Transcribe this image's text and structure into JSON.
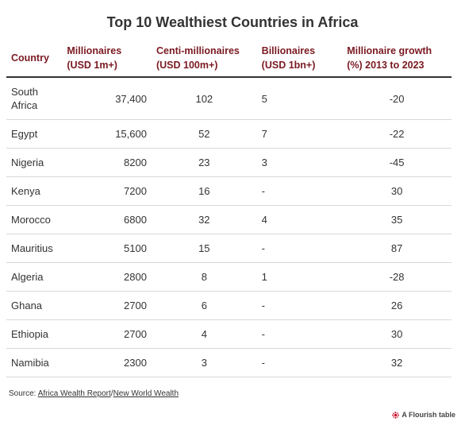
{
  "chart_data": {
    "type": "table",
    "title": "Top 10 Wealthiest Countries in Africa",
    "columns": [
      "Country",
      "Millionaires (USD 1m+)",
      "Centi-millionaires (USD 100m+)",
      "Billionaires (USD 1bn+)",
      "Millionaire growth (%) 2013 to 2023"
    ],
    "headers": {
      "country": "Country",
      "millionaires_l1": "Millionaires",
      "millionaires_l2": "(USD 1m+)",
      "centi_l1": "Centi-millionaires",
      "centi_l2": "(USD 100m+)",
      "billionaires_l1": "Billionaires",
      "billionaires_l2": "(USD 1bn+)",
      "growth_l1": "Millionaire growth",
      "growth_l2": "(%) 2013 to 2023"
    },
    "rows": [
      {
        "country": "South Africa",
        "millionaires": "37,400",
        "centi": "102",
        "billionaires": "5",
        "growth": "-20"
      },
      {
        "country": "Egypt",
        "millionaires": "15,600",
        "centi": "52",
        "billionaires": "7",
        "growth": "-22"
      },
      {
        "country": "Nigeria",
        "millionaires": "8200",
        "centi": "23",
        "billionaires": "3",
        "growth": "-45"
      },
      {
        "country": "Kenya",
        "millionaires": "7200",
        "centi": "16",
        "billionaires": "-",
        "growth": "30"
      },
      {
        "country": "Morocco",
        "millionaires": "6800",
        "centi": "32",
        "billionaires": "4",
        "growth": "35"
      },
      {
        "country": "Mauritius",
        "millionaires": "5100",
        "centi": "15",
        "billionaires": "-",
        "growth": "87"
      },
      {
        "country": "Algeria",
        "millionaires": "2800",
        "centi": "8",
        "billionaires": "1",
        "growth": "-28"
      },
      {
        "country": "Ghana",
        "millionaires": "2700",
        "centi": "6",
        "billionaires": "-",
        "growth": "26"
      },
      {
        "country": "Ethiopia",
        "millionaires": "2700",
        "centi": "4",
        "billionaires": "-",
        "growth": "30"
      },
      {
        "country": "Namibia",
        "millionaires": "2300",
        "centi": "3",
        "billionaires": "-",
        "growth": "32"
      }
    ]
  },
  "source": {
    "prefix": "Source: ",
    "link1": "Africa Wealth Report",
    "separator": "/",
    "link2": "New World Wealth"
  },
  "credit": {
    "label": "A Flourish table"
  },
  "colors": {
    "header_text": "#7a1a22",
    "body_text": "#333333",
    "rule": "#d8d8d8",
    "flourish_logo": "#c8102e"
  },
  "icons": {
    "credit_logo": "flourish-logo-icon"
  }
}
